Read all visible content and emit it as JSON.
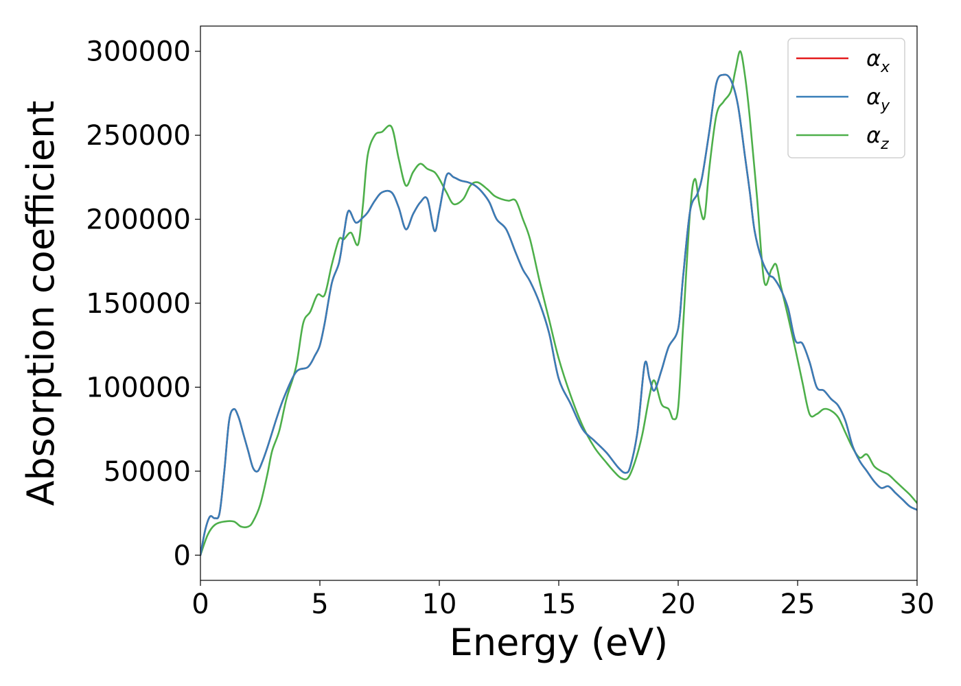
{
  "chart_data": {
    "type": "line",
    "xlabel": "Energy (eV)",
    "ylabel": "Absorption coefficient",
    "xlim": [
      0,
      30
    ],
    "ylim": [
      -15000,
      315000
    ],
    "xticks": [
      0,
      5,
      10,
      15,
      20,
      25,
      30
    ],
    "yticks": [
      0,
      50000,
      100000,
      150000,
      200000,
      250000,
      300000
    ],
    "xtick_labels": [
      "0",
      "5",
      "10",
      "15",
      "20",
      "25",
      "30"
    ],
    "ytick_labels": [
      "0",
      "50000",
      "100000",
      "150000",
      "200000",
      "250000",
      "300000"
    ],
    "grid": false,
    "legend_position": "top-right",
    "series": [
      {
        "name": "αx",
        "name_base": "α",
        "name_sub": "x",
        "color": "#e41a1c",
        "x": [
          0,
          0.2,
          0.4,
          0.6,
          0.8,
          1.0,
          1.2,
          1.4,
          1.6,
          1.8,
          2.0,
          2.2,
          2.4,
          2.6,
          2.8,
          3.0,
          3.2,
          3.5,
          4.0,
          4.5,
          4.8,
          5.0,
          5.2,
          5.5,
          5.8,
          6.0,
          6.2,
          6.5,
          6.8,
          7.0,
          7.3,
          7.6,
          8.0,
          8.3,
          8.6,
          8.9,
          9.2,
          9.5,
          9.8,
          10.0,
          10.3,
          10.6,
          10.9,
          11.2,
          11.5,
          11.8,
          12.1,
          12.4,
          12.8,
          13.2,
          13.5,
          13.8,
          14.2,
          14.6,
          15.0,
          15.5,
          16.0,
          16.5,
          17.0,
          17.5,
          17.8,
          18.0,
          18.3,
          18.6,
          18.8,
          19.0,
          19.3,
          19.6,
          20.0,
          20.2,
          20.5,
          20.8,
          21.0,
          21.3,
          21.6,
          21.9,
          22.2,
          22.5,
          22.8,
          23.0,
          23.2,
          23.5,
          23.8,
          24.0,
          24.3,
          24.6,
          24.9,
          25.2,
          25.5,
          25.8,
          26.1,
          26.4,
          26.7,
          27.0,
          27.3,
          27.6,
          27.9,
          28.2,
          28.5,
          28.8,
          29.1,
          29.4,
          29.7,
          30.0
        ],
        "y": [
          0,
          15000,
          23000,
          22000,
          25000,
          50000,
          80000,
          87000,
          82000,
          72000,
          62000,
          52000,
          50000,
          56000,
          64000,
          73000,
          82000,
          94000,
          109000,
          112000,
          119000,
          125000,
          138000,
          162000,
          174000,
          191000,
          205000,
          198000,
          201000,
          204000,
          211000,
          216000,
          216000,
          207000,
          194000,
          203000,
          210000,
          212000,
          193000,
          205000,
          226000,
          225000,
          223000,
          222000,
          220000,
          216000,
          210000,
          200000,
          194000,
          180000,
          170000,
          163000,
          150000,
          132000,
          105000,
          90000,
          75000,
          68000,
          61000,
          52000,
          49000,
          53000,
          74000,
          114000,
          105000,
          98000,
          110000,
          124000,
          135000,
          165000,
          205000,
          215000,
          225000,
          252000,
          281000,
          286000,
          283000,
          268000,
          237000,
          216000,
          193000,
          176000,
          167000,
          165000,
          158000,
          147000,
          128000,
          126000,
          115000,
          100000,
          98000,
          93000,
          89000,
          80000,
          65000,
          56000,
          50000,
          44000,
          40000,
          41000,
          37000,
          33000,
          29000,
          27000
        ]
      },
      {
        "name": "αy",
        "name_base": "α",
        "name_sub": "y",
        "color": "#377eb8",
        "x": [
          0,
          0.2,
          0.4,
          0.6,
          0.8,
          1.0,
          1.2,
          1.4,
          1.6,
          1.8,
          2.0,
          2.2,
          2.4,
          2.6,
          2.8,
          3.0,
          3.2,
          3.5,
          4.0,
          4.5,
          4.8,
          5.0,
          5.2,
          5.5,
          5.8,
          6.0,
          6.2,
          6.5,
          6.8,
          7.0,
          7.3,
          7.6,
          8.0,
          8.3,
          8.6,
          8.9,
          9.2,
          9.5,
          9.8,
          10.0,
          10.3,
          10.6,
          10.9,
          11.2,
          11.5,
          11.8,
          12.1,
          12.4,
          12.8,
          13.2,
          13.5,
          13.8,
          14.2,
          14.6,
          15.0,
          15.5,
          16.0,
          16.5,
          17.0,
          17.5,
          17.8,
          18.0,
          18.3,
          18.6,
          18.8,
          19.0,
          19.3,
          19.6,
          20.0,
          20.2,
          20.5,
          20.8,
          21.0,
          21.3,
          21.6,
          21.9,
          22.2,
          22.5,
          22.8,
          23.0,
          23.2,
          23.5,
          23.8,
          24.0,
          24.3,
          24.6,
          24.9,
          25.2,
          25.5,
          25.8,
          26.1,
          26.4,
          26.7,
          27.0,
          27.3,
          27.6,
          27.9,
          28.2,
          28.5,
          28.8,
          29.1,
          29.4,
          29.7,
          30.0
        ],
        "y": [
          0,
          15000,
          23000,
          22000,
          25000,
          50000,
          80000,
          87000,
          82000,
          72000,
          62000,
          52000,
          50000,
          56000,
          64000,
          73000,
          82000,
          94000,
          109000,
          112000,
          119000,
          125000,
          138000,
          162000,
          174000,
          191000,
          205000,
          198000,
          201000,
          204000,
          211000,
          216000,
          216000,
          207000,
          194000,
          203000,
          210000,
          212000,
          193000,
          205000,
          226000,
          225000,
          223000,
          222000,
          220000,
          216000,
          210000,
          200000,
          194000,
          180000,
          170000,
          163000,
          150000,
          132000,
          105000,
          90000,
          75000,
          68000,
          61000,
          52000,
          49000,
          53000,
          74000,
          114000,
          105000,
          98000,
          110000,
          124000,
          135000,
          165000,
          205000,
          215000,
          225000,
          252000,
          281000,
          286000,
          283000,
          268000,
          237000,
          216000,
          193000,
          176000,
          167000,
          165000,
          158000,
          147000,
          128000,
          126000,
          115000,
          100000,
          98000,
          93000,
          89000,
          80000,
          65000,
          56000,
          50000,
          44000,
          40000,
          41000,
          37000,
          33000,
          29000,
          27000
        ]
      },
      {
        "name": "αz",
        "name_base": "α",
        "name_sub": "z",
        "color": "#4daf4a",
        "x": [
          0,
          0.3,
          0.6,
          1.0,
          1.4,
          1.7,
          2.0,
          2.2,
          2.5,
          2.8,
          3.0,
          3.3,
          3.6,
          4.0,
          4.3,
          4.6,
          4.9,
          5.2,
          5.5,
          5.8,
          6.0,
          6.3,
          6.6,
          6.8,
          7.0,
          7.3,
          7.6,
          8.0,
          8.3,
          8.6,
          8.9,
          9.2,
          9.5,
          9.8,
          10.0,
          10.3,
          10.6,
          11.0,
          11.3,
          11.6,
          12.0,
          12.3,
          12.6,
          12.9,
          13.2,
          13.5,
          13.8,
          14.2,
          14.6,
          15.0,
          15.5,
          16.0,
          16.5,
          17.0,
          17.3,
          17.6,
          17.9,
          18.2,
          18.5,
          18.8,
          19.0,
          19.3,
          19.6,
          19.8,
          20.0,
          20.2,
          20.5,
          20.7,
          20.9,
          21.1,
          21.3,
          21.6,
          21.9,
          22.2,
          22.4,
          22.6,
          22.8,
          23.0,
          23.3,
          23.6,
          23.9,
          24.1,
          24.3,
          24.6,
          24.9,
          25.2,
          25.5,
          25.8,
          26.1,
          26.4,
          26.7,
          27.0,
          27.3,
          27.6,
          27.9,
          28.2,
          28.5,
          28.8,
          29.1,
          29.4,
          29.7,
          30.0
        ],
        "y": [
          0,
          12000,
          18000,
          20000,
          20000,
          17000,
          17000,
          20000,
          30000,
          48000,
          62000,
          74000,
          93000,
          112000,
          138000,
          145000,
          155000,
          155000,
          173000,
          188000,
          188000,
          192000,
          185000,
          208000,
          238000,
          250000,
          252000,
          255000,
          236000,
          220000,
          228000,
          233000,
          230000,
          228000,
          224000,
          216000,
          209000,
          212000,
          220000,
          222000,
          218000,
          214000,
          212000,
          211000,
          211000,
          200000,
          188000,
          163000,
          140000,
          117000,
          95000,
          77000,
          64000,
          55000,
          50000,
          46000,
          46000,
          56000,
          72000,
          95000,
          104000,
          90000,
          87000,
          81000,
          88000,
          135000,
          205000,
          224000,
          208000,
          201000,
          230000,
          262000,
          270000,
          276000,
          289000,
          300000,
          285000,
          260000,
          213000,
          163000,
          170000,
          173000,
          160000,
          142000,
          123000,
          103000,
          84000,
          84000,
          87000,
          86000,
          82000,
          73000,
          64000,
          58000,
          60000,
          53000,
          50000,
          48000,
          44000,
          40000,
          36000,
          31000
        ]
      }
    ]
  }
}
